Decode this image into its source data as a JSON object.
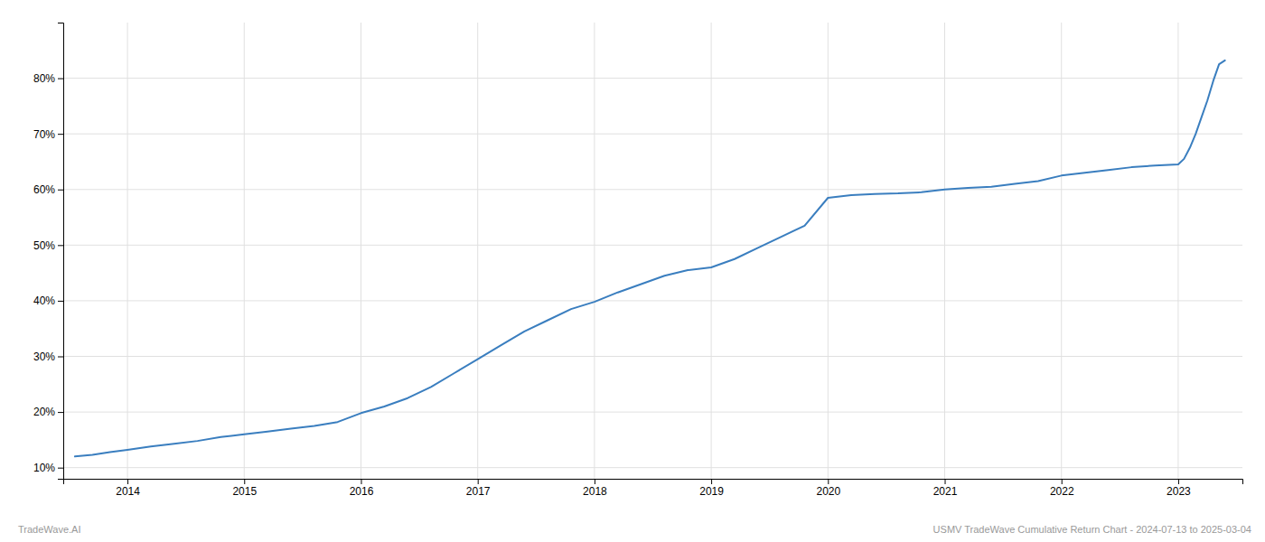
{
  "chart_data": {
    "type": "line",
    "color": "#3a7ebf",
    "grid": true,
    "annotations": [
      "TradeWave.AI",
      "USMV TradeWave Cumulative Return Chart - 2024-07-13 to 2025-03-04"
    ],
    "x": [
      2013.55,
      2013.7,
      2013.85,
      2014.0,
      2014.2,
      2014.4,
      2014.6,
      2014.8,
      2015.0,
      2015.2,
      2015.4,
      2015.6,
      2015.8,
      2016.0,
      2016.2,
      2016.4,
      2016.6,
      2016.8,
      2017.0,
      2017.2,
      2017.4,
      2017.6,
      2017.8,
      2018.0,
      2018.2,
      2018.4,
      2018.6,
      2018.8,
      2019.0,
      2019.2,
      2019.4,
      2019.6,
      2019.8,
      2020.0,
      2020.2,
      2020.4,
      2020.6,
      2020.8,
      2021.0,
      2021.2,
      2021.4,
      2021.6,
      2021.8,
      2022.0,
      2022.2,
      2022.4,
      2022.6,
      2022.8,
      2023.0,
      2023.05,
      2023.1,
      2023.15,
      2023.2,
      2023.25,
      2023.3,
      2023.35,
      2023.4
    ],
    "values": [
      12.0,
      12.3,
      12.8,
      13.2,
      13.8,
      14.3,
      14.8,
      15.5,
      16.0,
      16.5,
      17.0,
      17.5,
      18.2,
      19.8,
      21.0,
      22.5,
      24.5,
      27.0,
      29.5,
      32.0,
      34.5,
      36.5,
      38.5,
      39.8,
      41.5,
      43.0,
      44.5,
      45.5,
      46.0,
      47.5,
      49.5,
      51.5,
      53.5,
      58.5,
      59.0,
      59.2,
      59.3,
      59.5,
      60.0,
      60.3,
      60.5,
      61.0,
      61.5,
      62.5,
      63.0,
      63.5,
      64.0,
      64.3,
      64.5,
      65.5,
      67.5,
      70.0,
      73.0,
      76.0,
      79.5,
      82.5,
      83.2
    ],
    "xlim": [
      2013.45,
      2023.55
    ],
    "xticks": [
      2014,
      2015,
      2016,
      2017,
      2018,
      2019,
      2020,
      2021,
      2022,
      2023
    ],
    "ylim": [
      8,
      90
    ],
    "yticks": [
      {
        "value": 10,
        "label": "10%"
      },
      {
        "value": 20,
        "label": "20%"
      },
      {
        "value": 30,
        "label": "30%"
      },
      {
        "value": 40,
        "label": "40%"
      },
      {
        "value": 50,
        "label": "50%"
      },
      {
        "value": 60,
        "label": "60%"
      },
      {
        "value": 70,
        "label": "70%"
      },
      {
        "value": 80,
        "label": "80%"
      }
    ]
  }
}
